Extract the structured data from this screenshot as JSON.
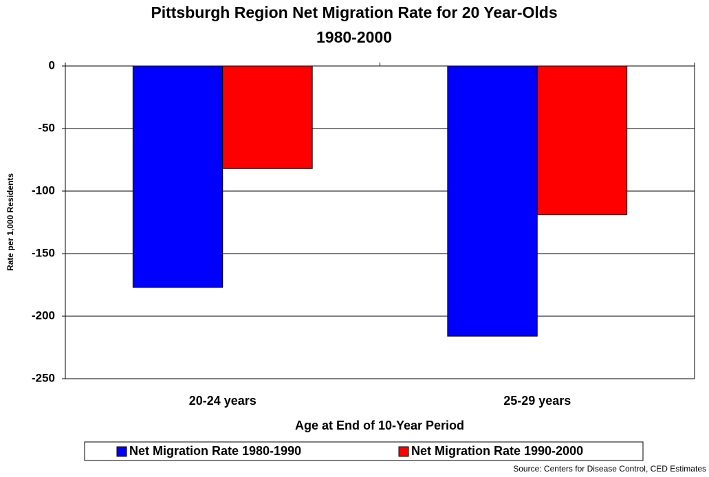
{
  "chart_data": {
    "type": "bar",
    "title": "Pittsburgh Region Net Migration Rate for 20 Year-Olds",
    "subtitle": "1980-2000",
    "y_label": "Rate per 1,000 Residents",
    "x_label": "Age at End of 10-Year Period",
    "categories": [
      "20-24 years",
      "25-29 years"
    ],
    "series": [
      {
        "name": "Net Migration Rate 1980-1990",
        "color": "#0000ff",
        "values": [
          -177,
          -216
        ]
      },
      {
        "name": "Net Migration Rate 1990-2000",
        "color": "#ff0000",
        "values": [
          -82,
          -119
        ]
      }
    ],
    "ylim": [
      -250,
      0
    ],
    "yticks": [
      0,
      -50,
      -100,
      -150,
      -200,
      -250
    ],
    "grid": true,
    "legend": "bottom",
    "source": "Source: Centers for Disease Control, CED Estimates"
  }
}
